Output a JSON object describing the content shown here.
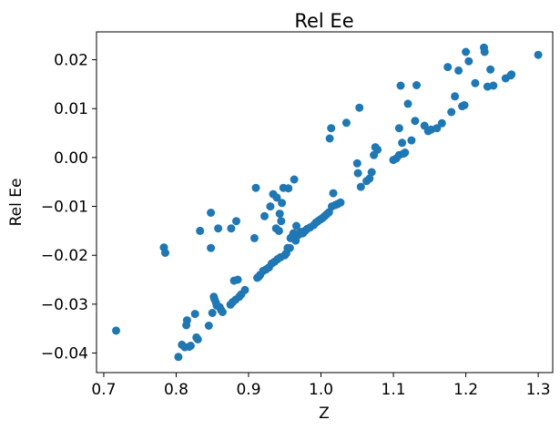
{
  "chart_data": {
    "type": "scatter",
    "title": "Rel Ee",
    "xlabel": "Z",
    "ylabel": "Rel Ee",
    "xlim": [
      0.69,
      1.32
    ],
    "ylim": [
      -0.044,
      0.0257
    ],
    "xticks": [
      0.7,
      0.8,
      0.9,
      1.0,
      1.1,
      1.2,
      1.3
    ],
    "xtick_labels": [
      "0.7",
      "0.8",
      "0.9",
      "1.0",
      "1.1",
      "1.2",
      "1.3"
    ],
    "yticks": [
      -0.04,
      -0.03,
      -0.02,
      -0.01,
      0.0,
      0.01,
      0.02
    ],
    "ytick_labels": [
      "−0.04",
      "−0.03",
      "−0.02",
      "−0.01",
      "0.00",
      "0.01",
      "0.02"
    ],
    "grid": false,
    "marker_color": "#1f77b4",
    "series": [
      {
        "points": [
          [
            0.717,
            -0.0354
          ],
          [
            0.783,
            -0.0184
          ],
          [
            0.785,
            -0.0195
          ],
          [
            0.803,
            -0.0408
          ],
          [
            0.808,
            -0.0383
          ],
          [
            0.812,
            -0.0388
          ],
          [
            0.814,
            -0.0343
          ],
          [
            0.815,
            -0.0333
          ],
          [
            0.818,
            -0.0387
          ],
          [
            0.82,
            -0.0385
          ],
          [
            0.826,
            -0.032
          ],
          [
            0.828,
            -0.0368
          ],
          [
            0.83,
            -0.0372
          ],
          [
            0.833,
            -0.015
          ],
          [
            0.845,
            -0.0344
          ],
          [
            0.848,
            -0.0113
          ],
          [
            0.848,
            -0.0185
          ],
          [
            0.85,
            -0.0318
          ],
          [
            0.852,
            -0.0285
          ],
          [
            0.853,
            -0.029
          ],
          [
            0.855,
            -0.0297
          ],
          [
            0.856,
            -0.0303
          ],
          [
            0.858,
            -0.0145
          ],
          [
            0.86,
            -0.0306
          ],
          [
            0.862,
            -0.0312
          ],
          [
            0.864,
            -0.0316
          ],
          [
            0.875,
            -0.0301
          ],
          [
            0.876,
            -0.0145
          ],
          [
            0.878,
            -0.0296
          ],
          [
            0.88,
            -0.0252
          ],
          [
            0.882,
            -0.0291
          ],
          [
            0.883,
            -0.013
          ],
          [
            0.885,
            -0.025
          ],
          [
            0.887,
            -0.0285
          ],
          [
            0.89,
            -0.028
          ],
          [
            0.895,
            -0.0271
          ],
          [
            0.908,
            -0.0165
          ],
          [
            0.91,
            -0.0062
          ],
          [
            0.912,
            -0.0246
          ],
          [
            0.914,
            -0.0244
          ],
          [
            0.916,
            -0.024
          ],
          [
            0.92,
            -0.0232
          ],
          [
            0.922,
            -0.012
          ],
          [
            0.924,
            -0.0229
          ],
          [
            0.928,
            -0.0225
          ],
          [
            0.93,
            -0.01
          ],
          [
            0.932,
            -0.0217
          ],
          [
            0.934,
            -0.0075
          ],
          [
            0.936,
            -0.0213
          ],
          [
            0.938,
            -0.0145
          ],
          [
            0.939,
            -0.0082
          ],
          [
            0.94,
            -0.0208
          ],
          [
            0.942,
            -0.015
          ],
          [
            0.943,
            -0.0115
          ],
          [
            0.944,
            -0.0204
          ],
          [
            0.945,
            -0.013
          ],
          [
            0.946,
            -0.0093
          ],
          [
            0.948,
            -0.0062
          ],
          [
            0.95,
            -0.02
          ],
          [
            0.952,
            -0.0196
          ],
          [
            0.954,
            -0.0185
          ],
          [
            0.955,
            -0.0063
          ],
          [
            0.957,
            -0.0185
          ],
          [
            0.958,
            -0.0165
          ],
          [
            0.96,
            -0.0162
          ],
          [
            0.962,
            -0.0155
          ],
          [
            0.963,
            -0.0045
          ],
          [
            0.965,
            -0.017
          ],
          [
            0.966,
            -0.014
          ],
          [
            0.967,
            -0.016
          ],
          [
            0.969,
            -0.0158
          ],
          [
            0.971,
            -0.0154
          ],
          [
            0.973,
            -0.0152
          ],
          [
            0.975,
            -0.0155
          ],
          [
            0.978,
            -0.015
          ],
          [
            0.981,
            -0.0146
          ],
          [
            0.985,
            -0.0143
          ],
          [
            0.99,
            -0.0138
          ],
          [
            0.993,
            -0.0133
          ],
          [
            0.996,
            -0.013
          ],
          [
            0.999,
            -0.0127
          ],
          [
            1.002,
            -0.0124
          ],
          [
            1.005,
            -0.012
          ],
          [
            1.008,
            -0.0116
          ],
          [
            1.011,
            -0.0112
          ],
          [
            1.012,
            0.0039
          ],
          [
            1.014,
            0.006
          ],
          [
            1.015,
            -0.01
          ],
          [
            1.017,
            -0.0073
          ],
          [
            1.02,
            -0.0097
          ],
          [
            1.023,
            -0.0095
          ],
          [
            1.027,
            -0.0092
          ],
          [
            1.035,
            0.0071
          ],
          [
            1.05,
            -0.0012
          ],
          [
            1.051,
            -0.0032
          ],
          [
            1.053,
            0.0102
          ],
          [
            1.055,
            -0.006
          ],
          [
            1.063,
            -0.0048
          ],
          [
            1.067,
            -0.0043
          ],
          [
            1.07,
            -0.003
          ],
          [
            1.073,
            0.0005
          ],
          [
            1.075,
            0.0021
          ],
          [
            1.078,
            0.0016
          ],
          [
            1.1,
            -0.0005
          ],
          [
            1.104,
            -0.0002
          ],
          [
            1.108,
            0.006
          ],
          [
            1.108,
            0.0005
          ],
          [
            1.11,
            0.0147
          ],
          [
            1.112,
            0.003
          ],
          [
            1.114,
            0.0008
          ],
          [
            1.116,
            0.001
          ],
          [
            1.12,
            0.011
          ],
          [
            1.125,
            0.0035
          ],
          [
            1.13,
            0.0075
          ],
          [
            1.132,
            0.0148
          ],
          [
            1.143,
            0.0065
          ],
          [
            1.148,
            0.0054
          ],
          [
            1.152,
            0.0057
          ],
          [
            1.16,
            0.006
          ],
          [
            1.167,
            0.007
          ],
          [
            1.175,
            0.0185
          ],
          [
            1.18,
            0.0093
          ],
          [
            1.185,
            0.0125
          ],
          [
            1.19,
            0.0178
          ],
          [
            1.195,
            0.0105
          ],
          [
            1.198,
            0.0107
          ],
          [
            1.2,
            0.0216
          ],
          [
            1.204,
            0.0197
          ],
          [
            1.213,
            0.0152
          ],
          [
            1.225,
            0.0225
          ],
          [
            1.226,
            0.0216
          ],
          [
            1.23,
            0.0145
          ],
          [
            1.234,
            0.018
          ],
          [
            1.238,
            0.0147
          ],
          [
            1.255,
            0.0162
          ],
          [
            1.262,
            0.0168
          ],
          [
            1.263,
            0.017
          ],
          [
            1.3,
            0.021
          ]
        ]
      }
    ]
  }
}
